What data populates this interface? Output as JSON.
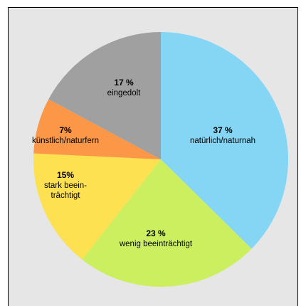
{
  "chart_data": {
    "type": "pie",
    "title": "",
    "slices": [
      {
        "pct_label": "37 %",
        "value": 37,
        "label_lines": [
          "natürlich/naturnah"
        ],
        "color": "#85d6f5"
      },
      {
        "pct_label": "23 %",
        "value": 23,
        "label_lines": [
          "wenig beeinträchtigt"
        ],
        "color": "#ccef60"
      },
      {
        "pct_label": "15%",
        "value": 15,
        "label_lines": [
          "stark beein-",
          "trächtigt"
        ],
        "color": "#fde150"
      },
      {
        "pct_label": "7%",
        "value": 7,
        "label_lines": [
          "künstlich/naturfern"
        ],
        "color": "#fb9747"
      },
      {
        "pct_label": "17 %",
        "value": 17,
        "label_lines": [
          "eingedolt"
        ],
        "color": "#a0a0a0"
      }
    ],
    "start": "top, clockwise"
  }
}
